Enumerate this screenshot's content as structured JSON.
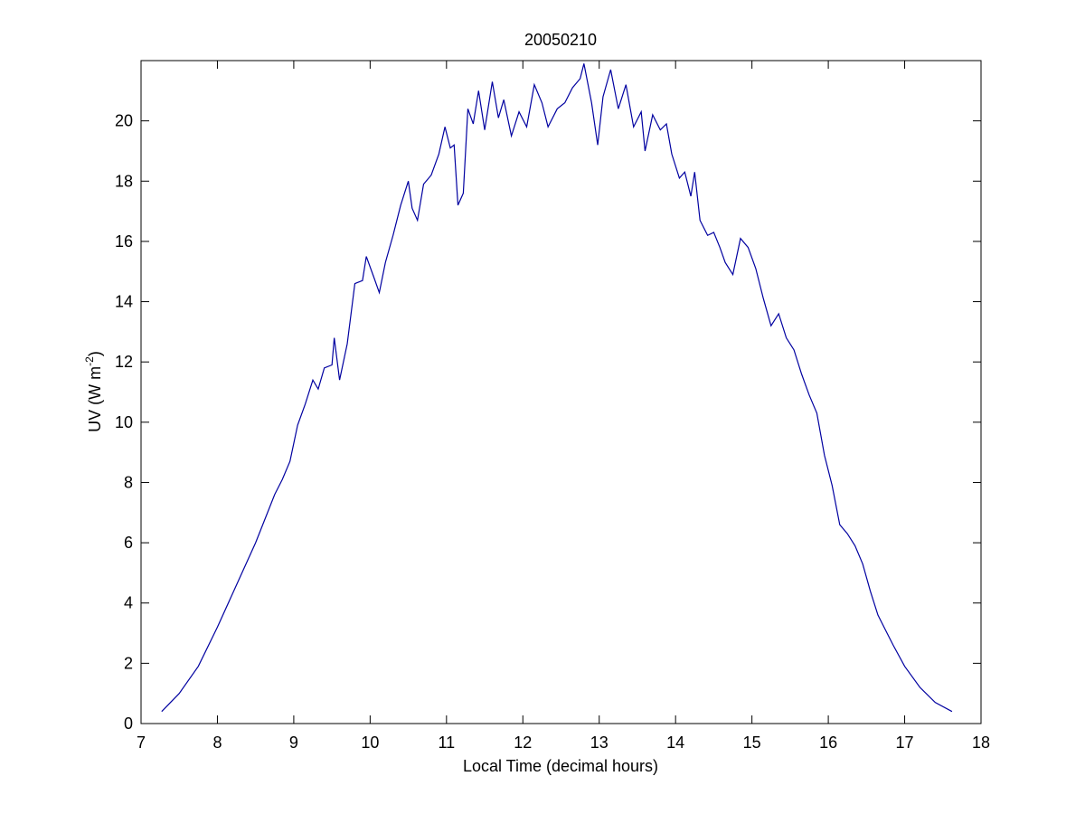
{
  "chart_data": {
    "type": "line",
    "title": "20050210",
    "xlabel": "Local Time (decimal hours)",
    "ylabel": {
      "text": "UV (W m",
      "superscript": "-2",
      "suffix": ")"
    },
    "xlim": [
      7,
      18
    ],
    "xticks": [
      7,
      8,
      9,
      10,
      11,
      12,
      13,
      14,
      15,
      16,
      17,
      18
    ],
    "ylim": [
      0,
      22
    ],
    "yticks": [
      0,
      2,
      4,
      6,
      8,
      10,
      12,
      14,
      16,
      18,
      20
    ],
    "grid": false,
    "series": [
      {
        "color": "#0000a0",
        "x": [
          7.27,
          7.5,
          7.75,
          8.0,
          8.25,
          8.5,
          8.75,
          8.85,
          8.95,
          9.05,
          9.15,
          9.25,
          9.32,
          9.4,
          9.5,
          9.53,
          9.6,
          9.7,
          9.8,
          9.9,
          9.95,
          10.05,
          10.12,
          10.2,
          10.3,
          10.4,
          10.5,
          10.55,
          10.62,
          10.7,
          10.8,
          10.9,
          10.98,
          11.05,
          11.1,
          11.15,
          11.22,
          11.28,
          11.35,
          11.42,
          11.5,
          11.6,
          11.68,
          11.75,
          11.85,
          11.95,
          12.05,
          12.15,
          12.25,
          12.33,
          12.45,
          12.55,
          12.65,
          12.75,
          12.8,
          12.9,
          12.98,
          13.05,
          13.15,
          13.25,
          13.35,
          13.45,
          13.55,
          13.6,
          13.7,
          13.8,
          13.88,
          13.95,
          14.05,
          14.12,
          14.2,
          14.25,
          14.32,
          14.42,
          14.5,
          14.58,
          14.65,
          14.75,
          14.85,
          14.95,
          15.05,
          15.15,
          15.25,
          15.35,
          15.45,
          15.55,
          15.65,
          15.75,
          15.85,
          15.95,
          16.05,
          16.15,
          16.25,
          16.35,
          16.45,
          16.55,
          16.65,
          16.75,
          16.85,
          17.0,
          17.2,
          17.4,
          17.62
        ],
        "values": [
          0.4,
          1.0,
          1.9,
          3.2,
          4.6,
          6.0,
          7.6,
          8.1,
          8.7,
          9.9,
          10.6,
          11.4,
          11.1,
          11.8,
          11.9,
          12.8,
          11.4,
          12.6,
          14.6,
          14.7,
          15.5,
          14.8,
          14.3,
          15.3,
          16.2,
          17.2,
          18.0,
          17.1,
          16.7,
          17.9,
          18.2,
          18.9,
          19.8,
          19.1,
          19.2,
          17.2,
          17.6,
          20.4,
          19.9,
          21.0,
          19.7,
          21.3,
          20.1,
          20.7,
          19.5,
          20.3,
          19.8,
          21.2,
          20.6,
          19.8,
          20.4,
          20.6,
          21.1,
          21.4,
          21.9,
          20.6,
          19.2,
          20.8,
          21.7,
          20.4,
          21.2,
          19.8,
          20.3,
          19.0,
          20.2,
          19.7,
          19.9,
          18.9,
          18.1,
          18.3,
          17.5,
          18.3,
          16.7,
          16.2,
          16.3,
          15.8,
          15.3,
          14.9,
          16.1,
          15.8,
          15.1,
          14.1,
          13.2,
          13.6,
          12.8,
          12.4,
          11.6,
          10.9,
          10.3,
          8.9,
          7.9,
          6.6,
          6.3,
          5.9,
          5.3,
          4.4,
          3.6,
          3.1,
          2.6,
          1.9,
          1.2,
          0.7,
          0.4
        ]
      }
    ]
  }
}
